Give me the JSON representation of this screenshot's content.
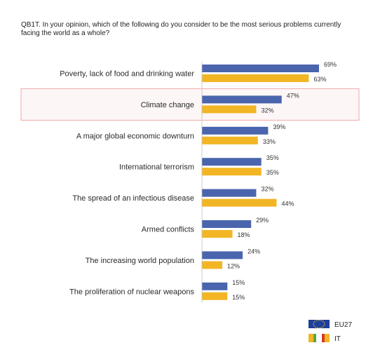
{
  "chart_data": {
    "type": "bar",
    "orientation": "horizontal",
    "title": "QB1T. In your opinion, which of the following do you consider to be the most serious problems currently facing the world as a whole?",
    "categories": [
      "Poverty, lack of food and drinking water",
      "Climate change",
      "A major global economic downturn",
      "International terrorism",
      "The spread of an infectious disease",
      "Armed conflicts",
      "The increasing world population",
      "The proliferation of nuclear weapons"
    ],
    "series": [
      {
        "name": "EU27",
        "values": [
          69,
          47,
          39,
          35,
          32,
          29,
          24,
          15
        ],
        "color": "#4a65ad",
        "labels": [
          "69%",
          "47%",
          "39%",
          "35%",
          "32%",
          "29%",
          "24%",
          "15%"
        ]
      },
      {
        "name": "IT",
        "values": [
          63,
          32,
          33,
          35,
          44,
          18,
          12,
          15
        ],
        "color": "#f2b625",
        "labels": [
          "63%",
          "32%",
          "33%",
          "35%",
          "44%",
          "18%",
          "12%",
          "15%"
        ]
      }
    ],
    "value_unit": "%",
    "xlim": [
      0,
      100
    ],
    "highlighted_category": "Climate change",
    "highlight_color": "#f0a8a8",
    "legend_position": "bottom-right",
    "grid": false
  }
}
